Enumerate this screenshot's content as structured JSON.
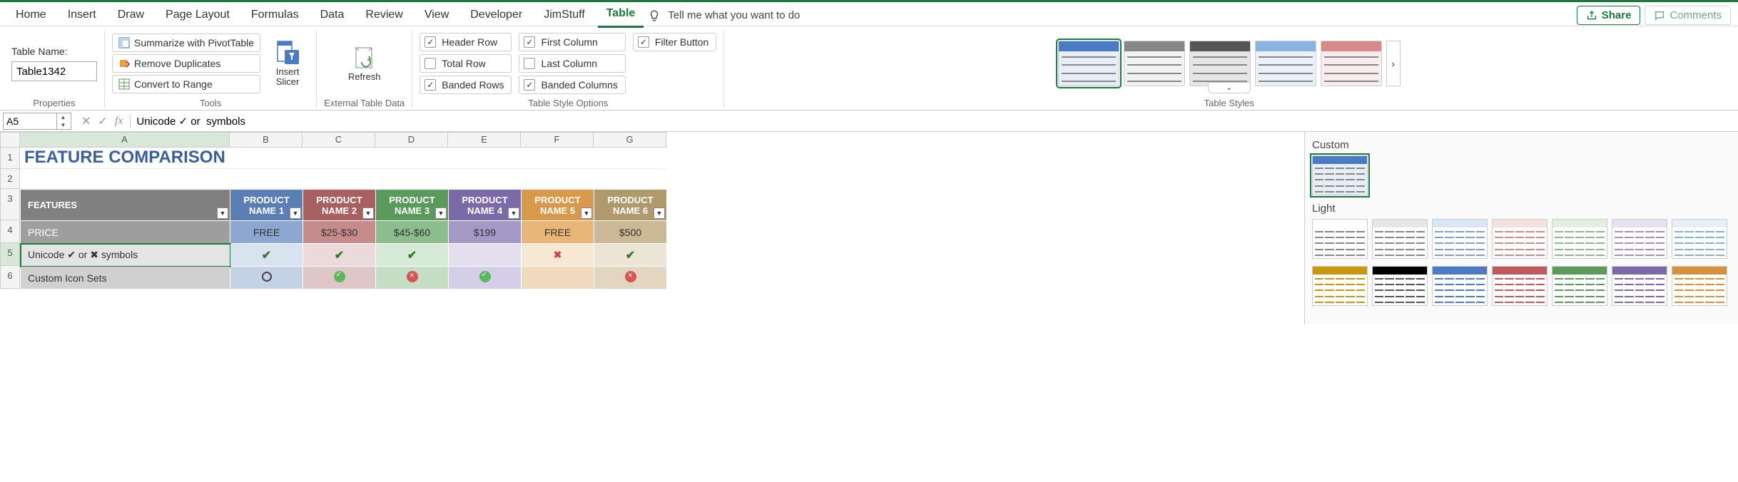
{
  "tabs": [
    "Home",
    "Insert",
    "Draw",
    "Page Layout",
    "Formulas",
    "Data",
    "Review",
    "View",
    "Developer",
    "JimStuff",
    "Table"
  ],
  "active_tab": "Table",
  "tell_me": "Tell me what you want to do",
  "share": "Share",
  "comments": "Comments",
  "ribbon": {
    "properties": {
      "label": "Properties",
      "table_name_label": "Table Name:",
      "table_name_value": "Table1342"
    },
    "tools": {
      "label": "Tools",
      "summarize": "Summarize with PivotTable",
      "remove_dup": "Remove Duplicates",
      "convert": "Convert to Range",
      "insert_slicer": "Insert Slicer"
    },
    "external": {
      "label": "External Table Data",
      "refresh": "Refresh"
    },
    "style_options": {
      "label": "Table Style Options",
      "header_row": "Header Row",
      "first_col": "First Column",
      "total_row": "Total Row",
      "last_col": "Last Column",
      "banded_rows": "Banded Rows",
      "banded_cols": "Banded Columns",
      "filter_button": "Filter Button",
      "checked": {
        "header_row": true,
        "first_col": true,
        "total_row": false,
        "last_col": false,
        "banded_rows": true,
        "banded_cols": true,
        "filter_button": true
      }
    },
    "styles": {
      "label": "Table Styles"
    }
  },
  "formula_bar": {
    "name_box": "A5",
    "formula": "Unicode ✓ or  symbols"
  },
  "grid": {
    "columns": [
      "A",
      "B",
      "C",
      "D",
      "E",
      "F",
      "G"
    ],
    "rows": [
      "1",
      "2",
      "3",
      "4",
      "5",
      "6"
    ],
    "title": "FEATURE COMPARISON",
    "headers": {
      "features": "FEATURES",
      "products": [
        "PRODUCT NAME 1",
        "PRODUCT NAME 2",
        "PRODUCT NAME 3",
        "PRODUCT NAME 4",
        "PRODUCT NAME 5",
        "PRODUCT NAME 6"
      ],
      "header_colors": [
        "#5a7fb5",
        "#a86060",
        "#5a9a5a",
        "#7a6aa8",
        "#d89a4a",
        "#b0996b"
      ]
    },
    "row_price": {
      "label": "PRICE",
      "values": [
        "FREE",
        "$25-$30",
        "$45-$60",
        "$199",
        "FREE",
        "$500"
      ],
      "cell_colors": [
        "#8da8d0",
        "#c68b8b",
        "#8cbd8c",
        "#a499c7",
        "#e8b676",
        "#cbb894"
      ]
    },
    "row_unicode": {
      "label": "Unicode ✔ or ✖ symbols",
      "values": [
        "✔",
        "✔",
        "✔",
        "",
        "✖",
        "✔"
      ],
      "cell_colors": [
        "#d9e2ef",
        "#ecd9d9",
        "#d7ead7",
        "#e3dfef",
        "#f6e8d2",
        "#ece4d5"
      ]
    },
    "row_icons": {
      "label": "Custom Icon Sets",
      "values": [
        "circle-o",
        "circle-check",
        "circle-x",
        "circle-check",
        "",
        "circle-x"
      ],
      "cell_colors": [
        "#c4d2e6",
        "#e0c7c7",
        "#c3dec3",
        "#d5cee8",
        "#f0dabd",
        "#e2d6c0"
      ]
    },
    "active_cell": "A5"
  },
  "style_panel": {
    "custom_label": "Custom",
    "light_label": "Light",
    "custom_thumbs": [
      {
        "hdr": "#4a7bc4",
        "bg": "#e8eef7"
      }
    ],
    "light_thumbs_row1": [
      {
        "hdr": "#fff",
        "bg": "#fff",
        "line": "#888"
      },
      {
        "hdr": "#e6e6e6",
        "bg": "#fff",
        "line": "#888"
      },
      {
        "hdr": "#d9e6f5",
        "bg": "#fff",
        "line": "#7da0d0"
      },
      {
        "hdr": "#f5e0e0",
        "bg": "#fff",
        "line": "#d08a8a"
      },
      {
        "hdr": "#e0efe0",
        "bg": "#fff",
        "line": "#8abb8a"
      },
      {
        "hdr": "#e6e0f0",
        "bg": "#fff",
        "line": "#a090c8"
      },
      {
        "hdr": "#e8f0f6",
        "bg": "#fff",
        "line": "#7fb4d4"
      }
    ],
    "light_thumbs_row2": [
      {
        "hdr": "#c8990f",
        "bg": "#fff",
        "line": "#c8990f"
      },
      {
        "hdr": "#000",
        "bg": "#fff",
        "line": "#555"
      },
      {
        "hdr": "#4a7bc4",
        "bg": "#fff",
        "line": "#4a7bc4"
      },
      {
        "hdr": "#c05a5a",
        "bg": "#fff",
        "line": "#c05a5a"
      },
      {
        "hdr": "#5a9a5a",
        "bg": "#fff",
        "line": "#5a9a5a"
      },
      {
        "hdr": "#7a6aa8",
        "bg": "#fff",
        "line": "#7a6aa8"
      },
      {
        "hdr": "#d8903a",
        "bg": "#fff",
        "line": "#d8903a"
      }
    ]
  }
}
